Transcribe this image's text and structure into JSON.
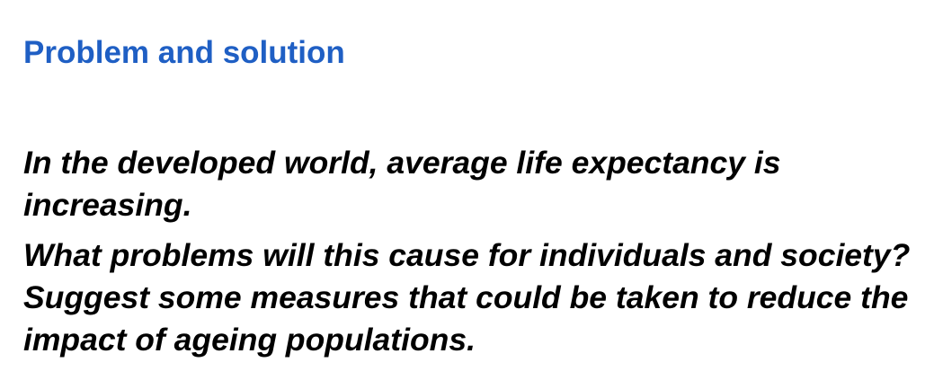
{
  "slide": {
    "heading": "Problem and solution",
    "heading_color": "#1f5fc4",
    "prompt": {
      "paragraph_1": "In the developed world, average life expectancy is increasing.",
      "paragraph_2": "What problems will this cause for individuals and society? Suggest some measures that could be taken to reduce the impact of ageing populations."
    }
  }
}
